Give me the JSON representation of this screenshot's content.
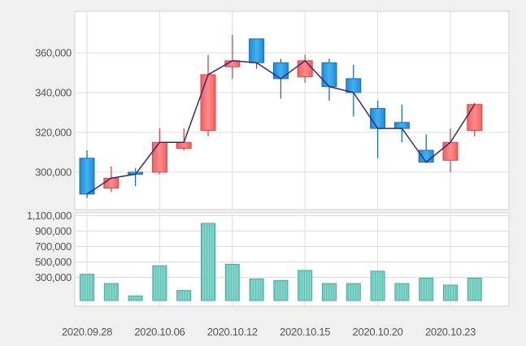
{
  "chart_data": {
    "type": "candlestick",
    "x_tick_labels": [
      "2020.09.28",
      "2020.10.06",
      "2020.10.12",
      "2020.10.15",
      "2020.10.20",
      "2020.10.23"
    ],
    "price_axis": {
      "ylim": [
        285000,
        370000
      ],
      "ticks": [
        300000,
        320000,
        340000,
        360000
      ],
      "tick_labels": [
        "300,000",
        "320,000",
        "340,000",
        "360,000"
      ]
    },
    "volume_axis": {
      "ylim": [
        0,
        1100000
      ],
      "ticks": [
        300000,
        500000,
        700000,
        900000,
        1100000
      ],
      "tick_labels": [
        "300,000",
        "500,000",
        "700,000",
        "900,000",
        "1,100,000"
      ]
    },
    "candles": [
      {
        "open": 307000,
        "high": 311000,
        "low": 287000,
        "close": 289000,
        "volume": 340000
      },
      {
        "open": 292000,
        "high": 303000,
        "low": 290000,
        "close": 297000,
        "volume": 220000
      },
      {
        "open": 300000,
        "high": 302000,
        "low": 293000,
        "close": 299000,
        "volume": 60000
      },
      {
        "open": 300000,
        "high": 322000,
        "low": 299000,
        "close": 315000,
        "volume": 450000
      },
      {
        "open": 312000,
        "high": 322000,
        "low": 311000,
        "close": 315000,
        "volume": 130000
      },
      {
        "open": 321000,
        "high": 359000,
        "low": 318000,
        "close": 349000,
        "volume": 1000000
      },
      {
        "open": 353000,
        "high": 369000,
        "low": 347000,
        "close": 356000,
        "volume": 470000
      },
      {
        "open": 367000,
        "high": 367000,
        "low": 352000,
        "close": 355000,
        "volume": 280000
      },
      {
        "open": 355000,
        "high": 357000,
        "low": 337000,
        "close": 347000,
        "volume": 260000
      },
      {
        "open": 348000,
        "high": 359000,
        "low": 345000,
        "close": 356000,
        "volume": 390000
      },
      {
        "open": 355000,
        "high": 357000,
        "low": 336000,
        "close": 343000,
        "volume": 220000
      },
      {
        "open": 347000,
        "high": 354000,
        "low": 328000,
        "close": 340000,
        "volume": 220000
      },
      {
        "open": 332000,
        "high": 336000,
        "low": 307000,
        "close": 322000,
        "volume": 380000
      },
      {
        "open": 325000,
        "high": 334000,
        "low": 315000,
        "close": 322000,
        "volume": 220000
      },
      {
        "open": 311000,
        "high": 319000,
        "low": 305000,
        "close": 305000,
        "volume": 290000
      },
      {
        "open": 306000,
        "high": 322000,
        "low": 300000,
        "close": 315000,
        "volume": 200000
      },
      {
        "open": 321000,
        "high": 335000,
        "low": 318000,
        "close": 334000,
        "volume": 290000
      }
    ],
    "line_series_note": "close",
    "grid": true,
    "colors": {
      "up": "#f26b6b",
      "up_dark": "#d94444",
      "down": "#2596e0",
      "down_dark": "#1a6fb0",
      "line": "#2e2d7a",
      "volume": "#7fd3c7",
      "volume_stroke": "#4aa89a",
      "grid": "#dcdcdc",
      "axis_text": "#555555"
    }
  }
}
